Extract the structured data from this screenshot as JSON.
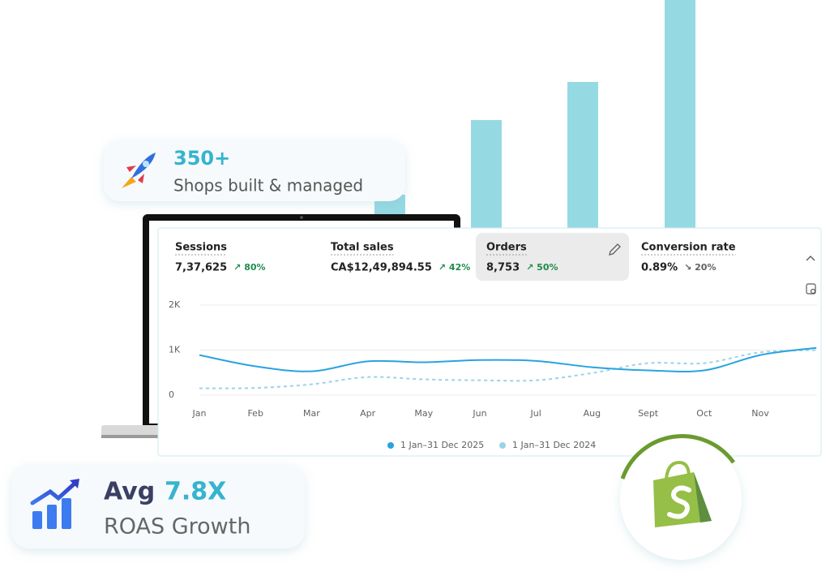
{
  "badges": {
    "shops": {
      "number": "350+",
      "text": "Shops built & managed"
    },
    "roas": {
      "prefix": "Avg",
      "number": "7.8X",
      "text": "ROAS Growth"
    }
  },
  "metrics": [
    {
      "label": "Sessions",
      "value": "7,37,625",
      "change": "↗ 80%"
    },
    {
      "label": "Total sales",
      "value": "CA$12,49,894.55",
      "change": "↗ 42%"
    },
    {
      "label": "Orders",
      "value": "8,753",
      "change": "↗ 50%"
    },
    {
      "label": "Conversion rate",
      "value": "0.89%",
      "change": "↘ 20%"
    }
  ],
  "chart_data": {
    "type": "line",
    "categories": [
      "Jan",
      "Feb",
      "Mar",
      "Apr",
      "May",
      "Jun",
      "Jul",
      "Aug",
      "Sept",
      "Oct",
      "Nov",
      null
    ],
    "series": [
      {
        "name": "1 Jan–31 Dec 2025",
        "color": "#29a3e0",
        "dashed": false,
        "values": [
          890,
          640,
          530,
          750,
          730,
          780,
          760,
          620,
          550,
          550,
          890,
          1050
        ]
      },
      {
        "name": "1 Jan–31 Dec 2024",
        "color": "#9ad3e8",
        "dashed": true,
        "values": [
          150,
          160,
          240,
          400,
          350,
          330,
          330,
          490,
          710,
          710,
          950,
          1000
        ]
      }
    ],
    "ylim": [
      0,
      2000
    ],
    "yticks": [
      0,
      {
        "value": 1000,
        "label": "1K"
      },
      {
        "value": 2000,
        "label": "2K"
      }
    ],
    "grid": true
  }
}
